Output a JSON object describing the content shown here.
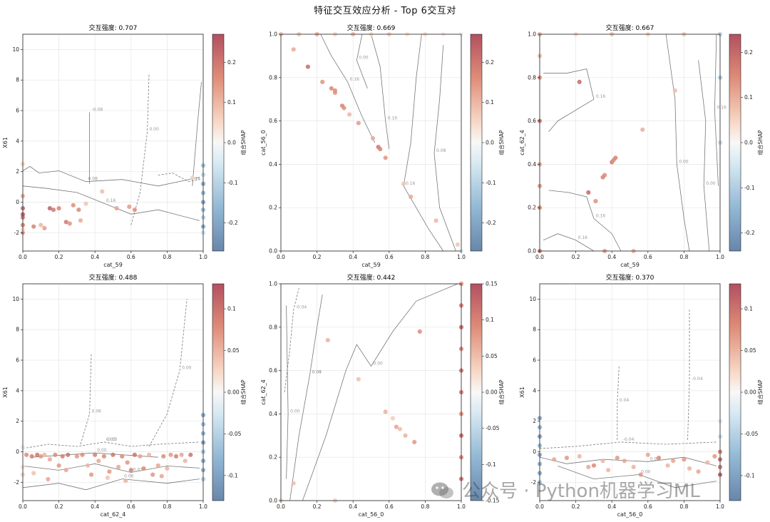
{
  "suptitle": "特征交互效应分析 - Top 6交互对",
  "watermark": "公众号 · Python机器学习ML",
  "colorbar_label": "组合SHAP",
  "chart_data": [
    {
      "type": "scatter",
      "title": "交互强度: 0.707",
      "xlabel": "cat_59",
      "ylabel": "X61",
      "xlim": [
        0,
        1
      ],
      "ylim": [
        -3.2,
        11
      ],
      "xticks": [
        0,
        0.2,
        0.4,
        0.6,
        0.8,
        1.0
      ],
      "yticks": [
        -2,
        0,
        2,
        4,
        6,
        8,
        10
      ],
      "colorbar": {
        "range": [
          -0.27,
          0.27
        ],
        "ticks": [
          -0.2,
          -0.1,
          0.0,
          0.1,
          0.2
        ]
      },
      "contour_labels": [
        "0.08",
        "0.16",
        "-0.08",
        "0.00",
        "0.16"
      ],
      "points": [
        [
          0.0,
          -0.4,
          0.22
        ],
        [
          0.0,
          -1.0,
          0.2
        ],
        [
          0.0,
          -1.5,
          0.18
        ],
        [
          0.0,
          -2.0,
          0.15
        ],
        [
          0.0,
          0.4,
          0.12
        ],
        [
          0.0,
          -0.8,
          0.25
        ],
        [
          0.0,
          -1.8,
          0.05
        ],
        [
          0.0,
          2.5,
          0.06
        ],
        [
          0.06,
          -1.6,
          0.18
        ],
        [
          0.1,
          -1.5,
          0.1
        ],
        [
          0.12,
          -1.7,
          0.14
        ],
        [
          0.15,
          -0.4,
          0.24
        ],
        [
          0.17,
          -0.5,
          0.2
        ],
        [
          0.2,
          -0.4,
          0.18
        ],
        [
          0.24,
          -1.3,
          0.2
        ],
        [
          0.26,
          -1.4,
          0.15
        ],
        [
          0.28,
          -0.2,
          0.16
        ],
        [
          0.31,
          -0.5,
          0.17
        ],
        [
          0.35,
          -0.1,
          0.08
        ],
        [
          0.32,
          -1.2,
          0.12
        ],
        [
          0.44,
          0.7,
          0.09
        ],
        [
          0.52,
          -0.4,
          0.13
        ],
        [
          0.59,
          -0.3,
          0.14
        ],
        [
          0.62,
          -0.5,
          0.16
        ],
        [
          0.94,
          1.6,
          0.06
        ],
        [
          1.0,
          2.4,
          -0.15
        ],
        [
          1.0,
          1.8,
          -0.1
        ],
        [
          1.0,
          1.2,
          -0.2
        ],
        [
          1.0,
          0.6,
          -0.18
        ],
        [
          1.0,
          0.0,
          -0.22
        ],
        [
          1.0,
          -0.5,
          -0.16
        ],
        [
          1.0,
          -1.0,
          -0.12
        ],
        [
          1.0,
          -1.6,
          -0.2
        ],
        [
          1.0,
          -2.0,
          -0.08
        ]
      ]
    },
    {
      "type": "scatter",
      "title": "交互强度: 0.669",
      "xlabel": "cat_59",
      "ylabel": "cat_56_0",
      "xlim": [
        0,
        1
      ],
      "ylim": [
        0,
        1
      ],
      "xticks": [
        0,
        0.2,
        0.4,
        0.6,
        0.8,
        1.0
      ],
      "yticks": [
        0,
        0.2,
        0.4,
        0.6,
        0.8,
        1.0
      ],
      "colorbar": {
        "range": [
          -0.27,
          0.27
        ],
        "ticks": [
          -0.2,
          -0.1,
          0.0,
          0.1,
          0.2
        ]
      },
      "contour_labels": [
        "0.16",
        "0.16",
        "0.16",
        "0.08",
        "0.00"
      ],
      "points": [
        [
          0.07,
          0.93,
          0.12
        ],
        [
          0.15,
          0.85,
          0.22
        ],
        [
          0.23,
          0.78,
          0.15
        ],
        [
          0.28,
          0.75,
          0.17
        ],
        [
          0.3,
          0.73,
          0.15
        ],
        [
          0.3,
          0.74,
          0.16
        ],
        [
          0.34,
          0.67,
          0.18
        ],
        [
          0.35,
          0.66,
          0.16
        ],
        [
          0.38,
          0.63,
          0.1
        ],
        [
          0.43,
          0.59,
          0.14
        ],
        [
          0.51,
          0.52,
          0.12
        ],
        [
          0.54,
          0.48,
          0.2
        ],
        [
          0.55,
          0.47,
          0.18
        ],
        [
          0.58,
          0.43,
          0.15
        ],
        [
          0.68,
          0.31,
          0.08
        ],
        [
          0.72,
          0.25,
          0.12
        ],
        [
          0.86,
          0.14,
          0.1
        ],
        [
          0.98,
          0.03,
          0.08
        ],
        [
          0.0,
          1.0,
          0.1
        ],
        [
          0.1,
          1.0,
          0.08
        ],
        [
          0.2,
          1.0,
          0.12
        ],
        [
          0.3,
          1.0,
          0.06
        ],
        [
          0.4,
          1.0,
          0.1
        ],
        [
          0.5,
          1.0,
          0.05
        ],
        [
          0.6,
          1.0,
          0.07
        ],
        [
          0.7,
          1.0,
          0.04
        ],
        [
          0.8,
          1.0,
          0.05
        ],
        [
          0.9,
          1.0,
          0.03
        ],
        [
          1.0,
          1.0,
          0.02
        ],
        [
          1.0,
          0.0,
          -0.05
        ]
      ]
    },
    {
      "type": "scatter",
      "title": "交互强度: 0.667",
      "xlabel": "cat_59",
      "ylabel": "cat_62_4",
      "xlim": [
        0,
        1
      ],
      "ylim": [
        0,
        1
      ],
      "xticks": [
        0,
        0.2,
        0.4,
        0.6,
        0.8,
        1.0
      ],
      "yticks": [
        0,
        0.2,
        0.4,
        0.6,
        0.8,
        1.0
      ],
      "colorbar": {
        "range": [
          -0.24,
          0.24
        ],
        "ticks": [
          -0.2,
          -0.1,
          0.0,
          0.1,
          0.2
        ]
      },
      "contour_labels": [
        "0.16",
        "0.16",
        "0.00",
        "0.00",
        "0.16",
        "0.16"
      ],
      "points": [
        [
          0.22,
          0.78,
          0.2
        ],
        [
          0.27,
          0.27,
          0.2
        ],
        [
          0.31,
          0.23,
          0.14
        ],
        [
          0.35,
          0.34,
          0.16
        ],
        [
          0.36,
          0.35,
          0.15
        ],
        [
          0.4,
          0.41,
          0.17
        ],
        [
          0.41,
          0.42,
          0.15
        ],
        [
          0.42,
          0.43,
          0.16
        ],
        [
          0.57,
          0.56,
          0.1
        ],
        [
          0.75,
          0.74,
          0.08
        ],
        [
          0.36,
          0.0,
          0.12
        ],
        [
          0.52,
          0.0,
          0.1
        ],
        [
          0.0,
          0.2,
          0.15
        ],
        [
          0.0,
          0.4,
          0.12
        ],
        [
          0.0,
          0.6,
          0.18
        ],
        [
          0.0,
          0.8,
          0.14
        ],
        [
          0.0,
          1.0,
          0.1
        ],
        [
          0.0,
          0.0,
          0.16
        ],
        [
          0.0,
          0.3,
          0.13
        ],
        [
          0.0,
          0.9,
          0.09
        ],
        [
          0.2,
          1.0,
          0.05
        ],
        [
          0.4,
          1.0,
          0.08
        ],
        [
          0.6,
          1.0,
          0.06
        ],
        [
          0.8,
          1.0,
          0.07
        ],
        [
          1.0,
          1.0,
          -0.1
        ],
        [
          1.0,
          0.8,
          -0.12
        ],
        [
          1.0,
          0.5,
          -0.08
        ]
      ]
    },
    {
      "type": "scatter",
      "title": "交互强度: 0.488",
      "xlabel": "cat_62_4",
      "ylabel": "X61",
      "xlim": [
        0,
        1
      ],
      "ylim": [
        -3.2,
        11
      ],
      "xticks": [
        0,
        0.2,
        0.4,
        0.6,
        0.8,
        1.0
      ],
      "yticks": [
        -2,
        0,
        2,
        4,
        6,
        8,
        10
      ],
      "colorbar": {
        "range": [
          -0.13,
          0.13
        ],
        "ticks": [
          -0.1,
          -0.05,
          0.0,
          0.05,
          0.1
        ]
      },
      "contour_labels": [
        "-0.03",
        "0.03",
        "0.06",
        "0.06",
        "0.00",
        "0.00",
        "0.03"
      ],
      "points": [
        [
          0.02,
          -0.2,
          0.08
        ],
        [
          0.05,
          -0.3,
          0.09
        ],
        [
          0.08,
          -0.2,
          0.1
        ],
        [
          0.1,
          -0.3,
          0.07
        ],
        [
          0.12,
          -0.2,
          0.05
        ],
        [
          0.15,
          -0.5,
          0.06
        ],
        [
          0.18,
          -0.2,
          0.08
        ],
        [
          0.2,
          -0.9,
          0.07
        ],
        [
          0.22,
          -0.3,
          0.09
        ],
        [
          0.24,
          -1.2,
          0.06
        ],
        [
          0.25,
          -0.2,
          0.1
        ],
        [
          0.3,
          -0.3,
          0.07
        ],
        [
          0.33,
          -0.2,
          0.08
        ],
        [
          0.36,
          -0.9,
          0.05
        ],
        [
          0.38,
          -1.5,
          0.07
        ],
        [
          0.4,
          -0.2,
          0.09
        ],
        [
          0.42,
          -0.6,
          0.06
        ],
        [
          0.45,
          -0.3,
          0.08
        ],
        [
          0.48,
          -1.3,
          0.07
        ],
        [
          0.5,
          -0.2,
          0.1
        ],
        [
          0.53,
          -1.0,
          0.06
        ],
        [
          0.55,
          -0.3,
          0.08
        ],
        [
          0.58,
          -0.7,
          0.07
        ],
        [
          0.6,
          -1.2,
          0.09
        ],
        [
          0.62,
          -0.2,
          0.1
        ],
        [
          0.65,
          -0.3,
          0.06
        ],
        [
          0.67,
          -1.1,
          0.08
        ],
        [
          0.7,
          -0.2,
          0.05
        ],
        [
          0.72,
          -1.5,
          0.07
        ],
        [
          0.75,
          -0.9,
          0.06
        ],
        [
          0.78,
          -0.3,
          0.08
        ],
        [
          0.8,
          -1.1,
          0.05
        ],
        [
          0.82,
          -0.2,
          0.07
        ],
        [
          0.85,
          -0.3,
          0.09
        ],
        [
          0.88,
          -0.2,
          0.06
        ],
        [
          0.9,
          -0.6,
          0.05
        ],
        [
          0.93,
          -0.2,
          0.1
        ],
        [
          0.06,
          -1.4,
          0.04
        ],
        [
          0.14,
          -1.8,
          0.06
        ],
        [
          0.47,
          -1.7,
          0.04
        ],
        [
          0.57,
          -1.9,
          0.05
        ],
        [
          0.77,
          -1.6,
          0.06
        ],
        [
          1.0,
          2.4,
          -0.1
        ],
        [
          1.0,
          1.8,
          -0.08
        ],
        [
          1.0,
          1.2,
          -0.09
        ],
        [
          1.0,
          0.6,
          -0.11
        ],
        [
          1.0,
          0.0,
          -0.07
        ],
        [
          1.0,
          -0.6,
          -0.1
        ],
        [
          1.0,
          -1.2,
          -0.09
        ],
        [
          1.0,
          -1.8,
          -0.06
        ],
        [
          0.0,
          -1.0,
          0.02
        ],
        [
          0.0,
          -1.5,
          0.03
        ],
        [
          0.0,
          0.3,
          -0.02
        ]
      ]
    },
    {
      "type": "scatter",
      "title": "交互强度: 0.442",
      "xlabel": "cat_56_0",
      "ylabel": "cat_62_4",
      "xlim": [
        0,
        1
      ],
      "ylim": [
        0,
        1
      ],
      "xticks": [
        0,
        0.2,
        0.4,
        0.6,
        0.8,
        1.0
      ],
      "yticks": [
        0,
        0.2,
        0.4,
        0.6,
        0.8,
        1.0
      ],
      "colorbar": {
        "range": [
          -0.15,
          0.15
        ],
        "ticks": [
          -0.15,
          -0.1,
          -0.05,
          0.0,
          0.05,
          0.1,
          0.15
        ]
      },
      "contour_labels": [
        "0.00",
        "0.00",
        "-0.04",
        "0.00",
        "0.04"
      ],
      "points": [
        [
          0.07,
          0.08,
          0.05
        ],
        [
          0.26,
          0.74,
          0.06
        ],
        [
          0.43,
          0.56,
          0.05
        ],
        [
          0.58,
          0.41,
          0.06
        ],
        [
          0.62,
          0.38,
          0.04
        ],
        [
          0.64,
          0.34,
          0.07
        ],
        [
          0.66,
          0.33,
          0.05
        ],
        [
          0.69,
          0.3,
          0.06
        ],
        [
          0.74,
          0.27,
          0.08
        ],
        [
          0.77,
          0.78,
          0.09
        ],
        [
          0.3,
          0.0,
          0.04
        ],
        [
          0.0,
          0.0,
          0.03
        ],
        [
          1.0,
          0.1,
          0.12
        ],
        [
          1.0,
          0.2,
          0.1
        ],
        [
          1.0,
          0.3,
          0.13
        ],
        [
          1.0,
          0.4,
          0.09
        ],
        [
          1.0,
          0.5,
          0.11
        ],
        [
          1.0,
          0.6,
          0.12
        ],
        [
          1.0,
          0.7,
          0.1
        ],
        [
          1.0,
          0.8,
          0.13
        ],
        [
          1.0,
          0.9,
          0.11
        ],
        [
          1.0,
          1.0,
          0.09
        ]
      ]
    },
    {
      "type": "scatter",
      "title": "交互强度: 0.370",
      "xlabel": "cat_56_0",
      "ylabel": "X61",
      "xlim": [
        0,
        1
      ],
      "ylim": [
        -3.2,
        11
      ],
      "xticks": [
        0,
        0.2,
        0.4,
        0.6,
        0.8,
        1.0
      ],
      "yticks": [
        -2,
        0,
        2,
        4,
        6,
        8,
        10
      ],
      "colorbar": {
        "range": [
          -0.13,
          0.13
        ],
        "ticks": [
          -0.1,
          -0.05,
          0.0,
          0.05,
          0.1
        ]
      },
      "contour_labels": [
        "-0.04",
        "0.00",
        "0.00",
        "0.04",
        "-0.04"
      ],
      "points": [
        [
          0.08,
          -0.5,
          0.06
        ],
        [
          0.15,
          -0.4,
          0.07
        ],
        [
          0.22,
          -0.3,
          0.05
        ],
        [
          0.27,
          -1.0,
          0.06
        ],
        [
          0.3,
          -0.9,
          0.08
        ],
        [
          0.35,
          -0.6,
          0.05
        ],
        [
          0.43,
          -0.4,
          0.07
        ],
        [
          0.47,
          -0.6,
          0.06
        ],
        [
          0.52,
          -1.0,
          0.05
        ],
        [
          0.56,
          -1.5,
          0.07
        ],
        [
          0.6,
          -0.2,
          0.06
        ],
        [
          0.66,
          -0.4,
          0.08
        ],
        [
          0.71,
          -0.9,
          0.05
        ],
        [
          0.74,
          -0.6,
          0.06
        ],
        [
          0.8,
          -0.5,
          0.07
        ],
        [
          0.83,
          -1.1,
          0.05
        ],
        [
          0.88,
          -1.3,
          0.06
        ],
        [
          0.93,
          -0.7,
          0.05
        ],
        [
          0.97,
          -0.3,
          0.07
        ],
        [
          0.38,
          -1.2,
          0.05
        ],
        [
          0.0,
          2.2,
          -0.1
        ],
        [
          0.0,
          1.6,
          -0.09
        ],
        [
          0.0,
          1.0,
          -0.11
        ],
        [
          0.0,
          0.4,
          -0.08
        ],
        [
          0.0,
          -0.2,
          -0.1
        ],
        [
          0.0,
          -0.8,
          -0.09
        ],
        [
          0.0,
          -1.4,
          -0.1
        ],
        [
          0.0,
          -2.0,
          -0.07
        ],
        [
          1.0,
          -0.5,
          0.11
        ],
        [
          1.0,
          -1.0,
          0.1
        ],
        [
          1.0,
          -1.5,
          0.12
        ],
        [
          1.0,
          0.0,
          0.09
        ],
        [
          1.0,
          1.0,
          -0.04
        ],
        [
          1.0,
          2.0,
          -0.03
        ]
      ]
    }
  ]
}
